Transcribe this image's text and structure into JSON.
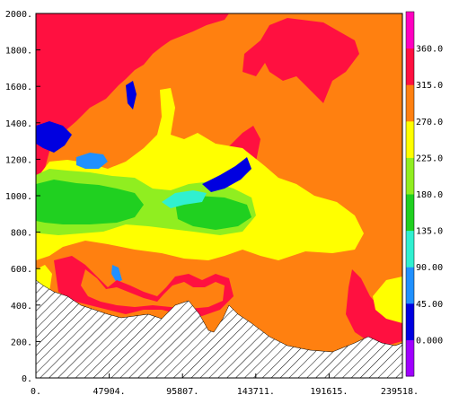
{
  "chart_data": {
    "type": "heatmap",
    "title": "",
    "xlabel": "",
    "ylabel": "",
    "xlim": [
      0,
      239518
    ],
    "ylim": [
      0,
      2000
    ],
    "x_ticks": [
      "0.",
      "47904.",
      "95807.",
      "143711.",
      "191615.",
      "239518."
    ],
    "y_ticks": [
      "0.",
      "200.",
      "400.",
      "600.",
      "800.",
      "1000.",
      "1200.",
      "1400.",
      "1600.",
      "1800.",
      "2000."
    ],
    "colorbar": {
      "labels": [
        "0.000",
        "45.00",
        "90.00",
        "135.0",
        "180.0",
        "225.0",
        "270.0",
        "315.0",
        "360.0"
      ],
      "levels": [
        0,
        45,
        90,
        135,
        180,
        225,
        270,
        315,
        360
      ],
      "colors": [
        "#a000ff",
        "#0000e0",
        "#2090ff",
        "#30f0d0",
        "#20d020",
        "#90ee20",
        "#ffff00",
        "#ff8010",
        "#ff1040",
        "#ff00c0"
      ]
    },
    "terrain_hatched": true
  },
  "colors": {
    "background_field": "#ff8010",
    "terrain_fill": "#ffffff",
    "hatch": "#000000"
  }
}
